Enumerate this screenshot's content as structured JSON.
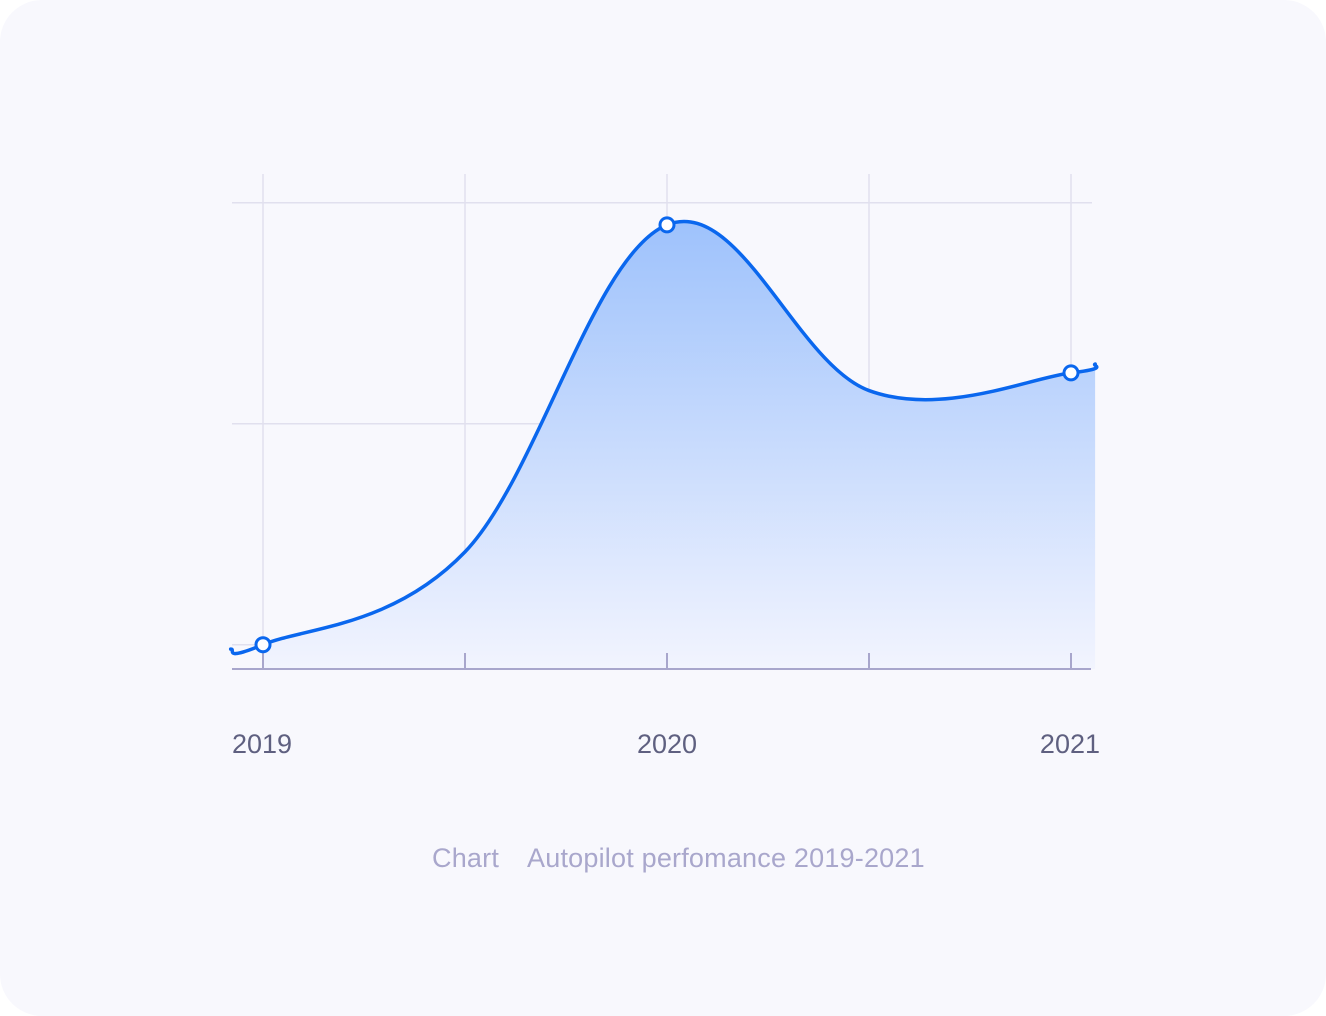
{
  "theme": {
    "card_background": "#f8f8fd",
    "line_color": "#0a67ee",
    "fill_top": "#9ec2fc",
    "fill_bottom": "#f2f4fe",
    "grid_color": "#e1e0ee",
    "axis_color": "#a8a6cc",
    "tick_label_color": "#5f6080",
    "caption_color": "#a9a7cc",
    "marker_fill": "#ffffff"
  },
  "caption": {
    "prefix": "Chart",
    "text": "Autopilot perfomance 2019-2021"
  },
  "chart_data": {
    "type": "area",
    "title": "Autopilot perfomance 2019-2021",
    "xlabel": "",
    "ylabel": "",
    "x_tick_labels": [
      "2019",
      "2020",
      "2021"
    ],
    "x_grid_count": 5,
    "y_grid_count": 3,
    "grid": true,
    "legend": "none",
    "x": [
      2018.92,
      2019,
      2019.5,
      2020,
      2020.5,
      2021,
      2021.06
    ],
    "values": [
      3,
      5,
      47,
      195,
      120,
      128,
      132
    ],
    "markers": [
      {
        "x": 2019,
        "y": 5
      },
      {
        "x": 2020,
        "y": 195
      },
      {
        "x": 2021,
        "y": 128
      }
    ],
    "xlim": [
      2018.92,
      2021.06
    ],
    "ylim": [
      -6,
      218
    ]
  }
}
